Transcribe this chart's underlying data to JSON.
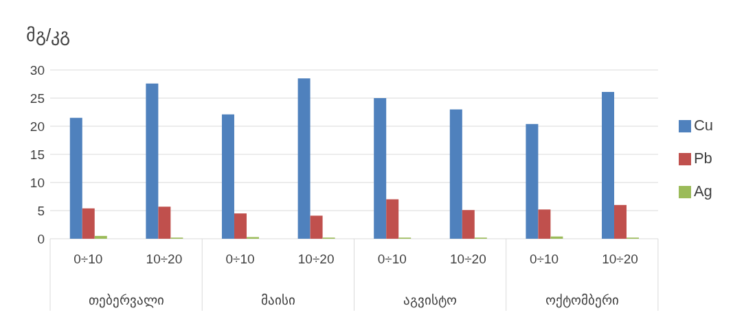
{
  "chart_data": {
    "type": "bar",
    "ylabel": "მგ/კგ",
    "categories": [
      "0÷10",
      "10÷20",
      "0÷10",
      "10÷20",
      "0÷10",
      "10÷20",
      "0÷10",
      "10÷20"
    ],
    "annotations": [
      "თებერვალი",
      "მაისი",
      "აგვისტო",
      "ოქტომბერი"
    ],
    "series": [
      {
        "name": "Cu",
        "color": "#4f81bd",
        "values": [
          21.5,
          27.6,
          22.1,
          28.5,
          25.0,
          23.0,
          20.4,
          26.1
        ]
      },
      {
        "name": "Pb",
        "color": "#c0504d",
        "values": [
          5.4,
          5.7,
          4.5,
          4.1,
          7.0,
          5.1,
          5.2,
          6.0
        ]
      },
      {
        "name": "Ag",
        "color": "#9bbb59",
        "values": [
          0.5,
          0.2,
          0.3,
          0.2,
          0.2,
          0.2,
          0.4,
          0.2
        ]
      }
    ],
    "ylim": [
      0,
      30
    ],
    "yticks": [
      0,
      5,
      10,
      15,
      20,
      25,
      30
    ],
    "grid": "y",
    "legend": "right"
  }
}
